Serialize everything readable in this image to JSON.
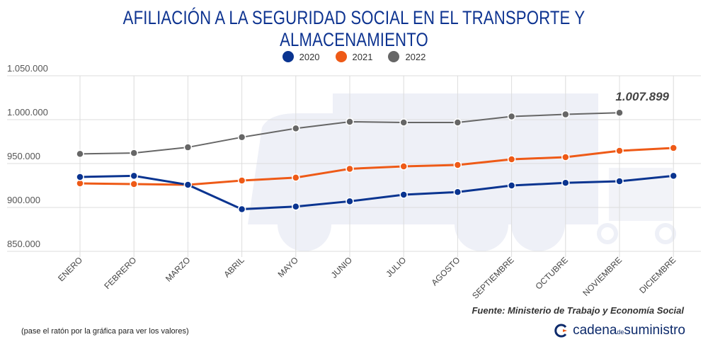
{
  "title": "AFILIACIÓN A LA SEGURIDAD SOCIAL EN EL TRANSPORTE Y ALMACENAMIENTO",
  "source": "Fuente: Ministerio de Trabajo y Economía Social",
  "hint": "(pase el ratón por la gráfica para ver los valores)",
  "logo": {
    "part1": "cadena",
    "part2": "de",
    "part3": "suministro"
  },
  "chart_data": {
    "type": "line",
    "title": "AFILIACIÓN A LA SEGURIDAD SOCIAL EN EL TRANSPORTE Y ALMACENAMIENTO",
    "categories": [
      "ENERO",
      "FEBRERO",
      "MARZO",
      "ABRIL",
      "MAYO",
      "JUNIO",
      "JULIO",
      "AGOSTO",
      "SEPTIEMBRE",
      "OCTUBRE",
      "NOVIEMBRE",
      "DICIEMBRE"
    ],
    "yticks": [
      850000,
      900000,
      950000,
      1000000,
      1050000
    ],
    "ytick_labels": [
      "850.000",
      "900.000",
      "950.000",
      "1.000.000",
      "1.050.000"
    ],
    "ylim": [
      850000,
      1050000
    ],
    "legend_position": "top-center",
    "annotation": {
      "text": "1.007.899",
      "series": "2022",
      "category": "NOVIEMBRE"
    },
    "series": [
      {
        "name": "2020",
        "color": "#0a3490",
        "values": [
          934700,
          936000,
          925800,
          898000,
          901000,
          907000,
          914500,
          917500,
          925000,
          928000,
          929800,
          936000
        ]
      },
      {
        "name": "2021",
        "color": "#ee5a17",
        "values": [
          927400,
          926600,
          925800,
          930600,
          934000,
          944000,
          946800,
          948400,
          954800,
          957300,
          964500,
          967700
        ]
      },
      {
        "name": "2022",
        "color": "#666666",
        "values": [
          961000,
          962000,
          968500,
          980000,
          990000,
          997600,
          996800,
          996800,
          1003600,
          1006000,
          1007899,
          null
        ]
      }
    ]
  }
}
